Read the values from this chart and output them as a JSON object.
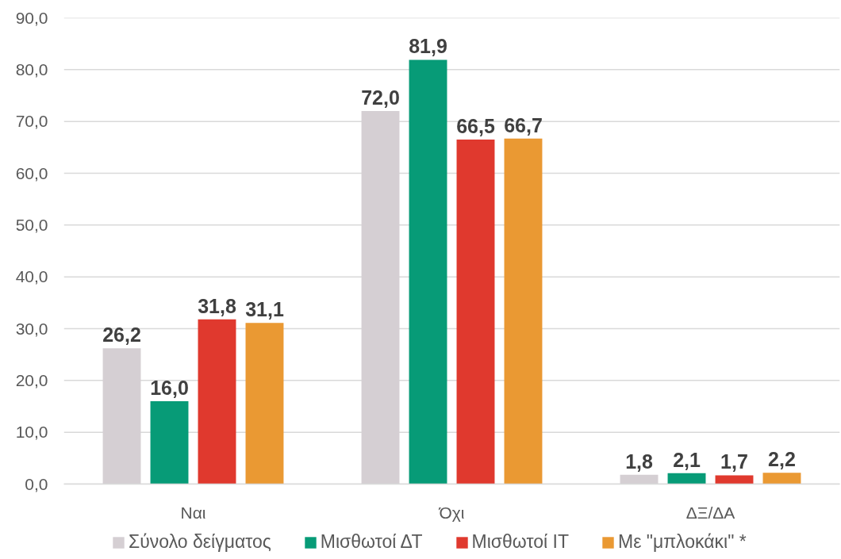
{
  "chart_data": {
    "type": "bar",
    "categories": [
      "Ναι",
      "Όχι",
      "ΔΞ/ΔΑ"
    ],
    "series": [
      {
        "name": "Σύνολο δείγματος",
        "color": "#d5cfd3",
        "values": [
          26.2,
          72.0,
          1.8
        ],
        "value_labels": [
          "26,2",
          "72,0",
          "1,8"
        ]
      },
      {
        "name": "Μισθωτοί ΔΤ",
        "color": "#079b77",
        "values": [
          16.0,
          81.9,
          2.1
        ],
        "value_labels": [
          "16,0",
          "81,9",
          "2,1"
        ]
      },
      {
        "name": "Μισθωτοί ΙΤ",
        "color": "#e0392e",
        "values": [
          31.8,
          66.5,
          1.7
        ],
        "value_labels": [
          "31,8",
          "66,5",
          "1,7"
        ]
      },
      {
        "name": "Με \"μπλοκάκι\" *",
        "color": "#ea9933",
        "values": [
          31.1,
          66.7,
          2.2
        ],
        "value_labels": [
          "31,1",
          "66,7",
          "2,2"
        ]
      }
    ],
    "ylim": [
      0,
      90
    ],
    "yticks": [
      {
        "value": 0,
        "label": "0,0"
      },
      {
        "value": 10,
        "label": "10,0"
      },
      {
        "value": 20,
        "label": "20,0"
      },
      {
        "value": 30,
        "label": "30,0"
      },
      {
        "value": 40,
        "label": "40,0"
      },
      {
        "value": 50,
        "label": "50,0"
      },
      {
        "value": 60,
        "label": "60,0"
      },
      {
        "value": 70,
        "label": "70,0"
      },
      {
        "value": 80,
        "label": "80,0"
      },
      {
        "value": 90,
        "label": "90,0"
      }
    ],
    "grid": "y",
    "legend": "bottom"
  }
}
